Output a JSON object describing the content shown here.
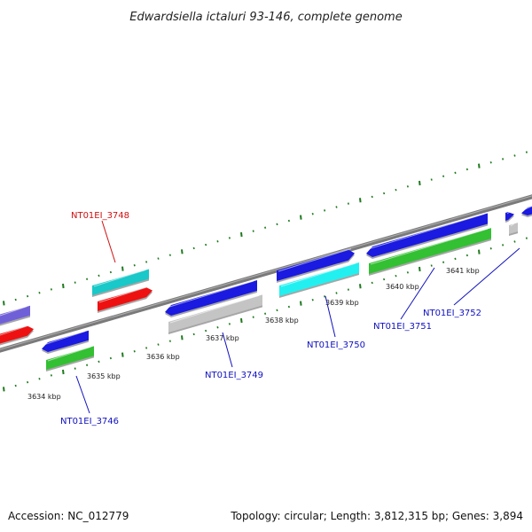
{
  "title": "Edwardsiella ictaluri 93-146, complete genome",
  "accession": "Accession: NC_012779",
  "topology": "Topology: circular; Length: 3,812,315 bp; Genes: 3,894",
  "colors": {
    "backbone": "#7a7a7a",
    "tick": "#1e7a1e",
    "label_blue": "#1010c0",
    "label_red": "#d01010",
    "blue": "#1a1ae0",
    "red": "#ee1111",
    "cyan": "#19c8c8",
    "brightcyan": "#22f0f0",
    "green": "#33c033",
    "gray": "#c4c4c4",
    "purple": "#7060d8"
  },
  "kbp_ticks": [
    "3634 kbp",
    "3635 kbp",
    "3636 kbp",
    "3637 kbp",
    "3638 kbp",
    "3639 kbp",
    "3640 kbp",
    "3641 kbp"
  ],
  "gene_labels": [
    {
      "text": "NT01EI_3748",
      "color": "label_red"
    },
    {
      "text": "NT01EI_3746",
      "color": "label_blue"
    },
    {
      "text": "NT01EI_3749",
      "color": "label_blue"
    },
    {
      "text": "NT01EI_3750",
      "color": "label_blue"
    },
    {
      "text": "NT01EI_3751",
      "color": "label_blue"
    },
    {
      "text": "NT01EI_3752",
      "color": "label_blue"
    }
  ]
}
